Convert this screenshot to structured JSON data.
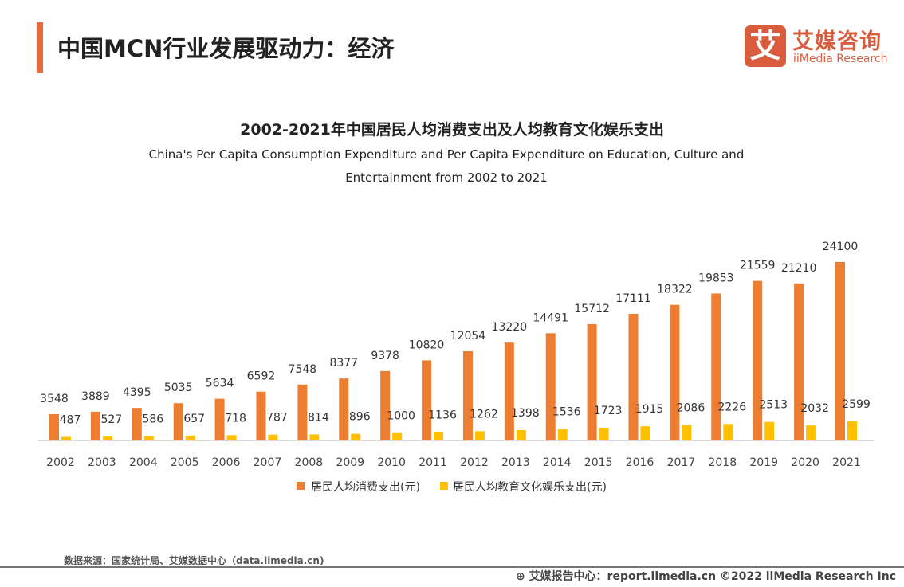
{
  "header": {
    "title": "中国MCN行业发展驱动力：经济"
  },
  "logo": {
    "glyph": "艾",
    "cn": "艾媒咨询",
    "en": "iiMedia Research"
  },
  "chart_data": {
    "type": "bar",
    "title": "2002-2021年中国居民人均消费支出及人均教育文化娱乐支出",
    "subtitle": "China's Per Capita Consumption Expenditure and Per Capita Expenditure on Education, Culture and Entertainment from 2002 to 2021",
    "categories": [
      "2002",
      "2003",
      "2004",
      "2005",
      "2006",
      "2007",
      "2008",
      "2009",
      "2010",
      "2011",
      "2012",
      "2013",
      "2014",
      "2015",
      "2016",
      "2017",
      "2018",
      "2019",
      "2020",
      "2021"
    ],
    "series": [
      {
        "name": "居民人均消费支出(元)",
        "color": "#ed7d31",
        "values": [
          3548,
          3889,
          4395,
          5035,
          5634,
          6592,
          7548,
          8377,
          9378,
          10820,
          12054,
          13220,
          14491,
          15712,
          17111,
          18322,
          19853,
          21559,
          21210,
          24100
        ]
      },
      {
        "name": "居民人均教育文化娱乐支出(元)",
        "color": "#ffc000",
        "values": [
          487,
          527,
          586,
          657,
          718,
          787,
          814,
          896,
          1000,
          1136,
          1262,
          1398,
          1536,
          1723,
          1915,
          2086,
          2226,
          2513,
          2032,
          2599
        ]
      }
    ],
    "legend": "bottom",
    "grid": false
  },
  "footer": {
    "source": "数据来源：国家统计局、艾媒数据中心（data.iimedia.cn)",
    "copyright": "艾媒报告中心：report.iimedia.cn   ©2022  iiMedia Research  Inc",
    "globe_icon": "globe-icon"
  }
}
